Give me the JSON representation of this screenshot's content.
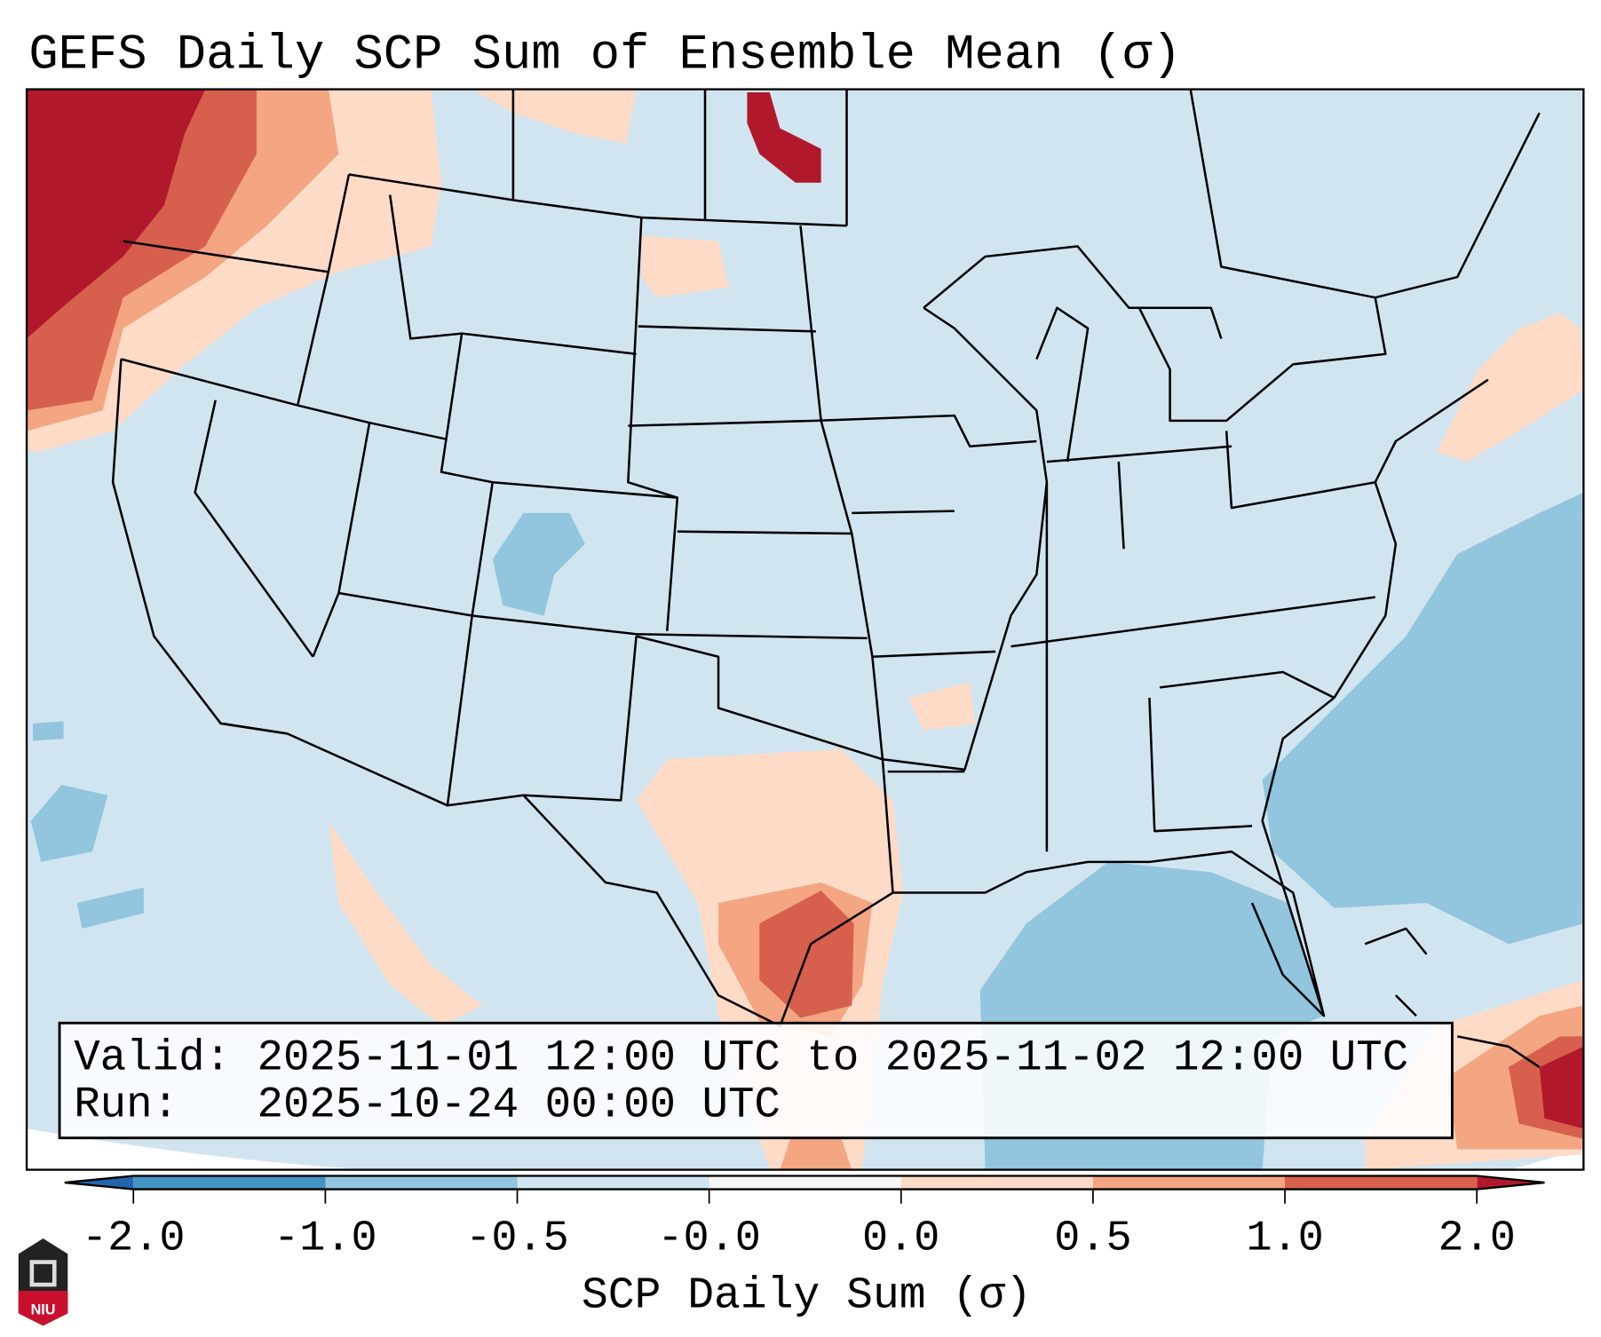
{
  "title": "GEFS Daily SCP Sum of Ensemble Mean (σ)",
  "info": {
    "valid_line": "Valid: 2025-11-01 12:00 UTC to 2025-11-02 12:00 UTC",
    "run_line": "Run:   2025-10-24 00:00 UTC"
  },
  "colorbar": {
    "label": "SCP Daily Sum (σ)",
    "ticks": [
      "-2.0",
      "-1.0",
      "-0.5",
      "-0.0",
      "0.0",
      "0.5",
      "1.0",
      "2.0"
    ],
    "under_color": "#2166ac",
    "over_color": "#b2182b",
    "segment_colors": [
      "#4393c3",
      "#92c5de",
      "#d1e5f0",
      "#f7f7f7",
      "#fddbc7",
      "#f4a582",
      "#d6604d"
    ]
  },
  "logo": {
    "text": "NIU"
  }
}
